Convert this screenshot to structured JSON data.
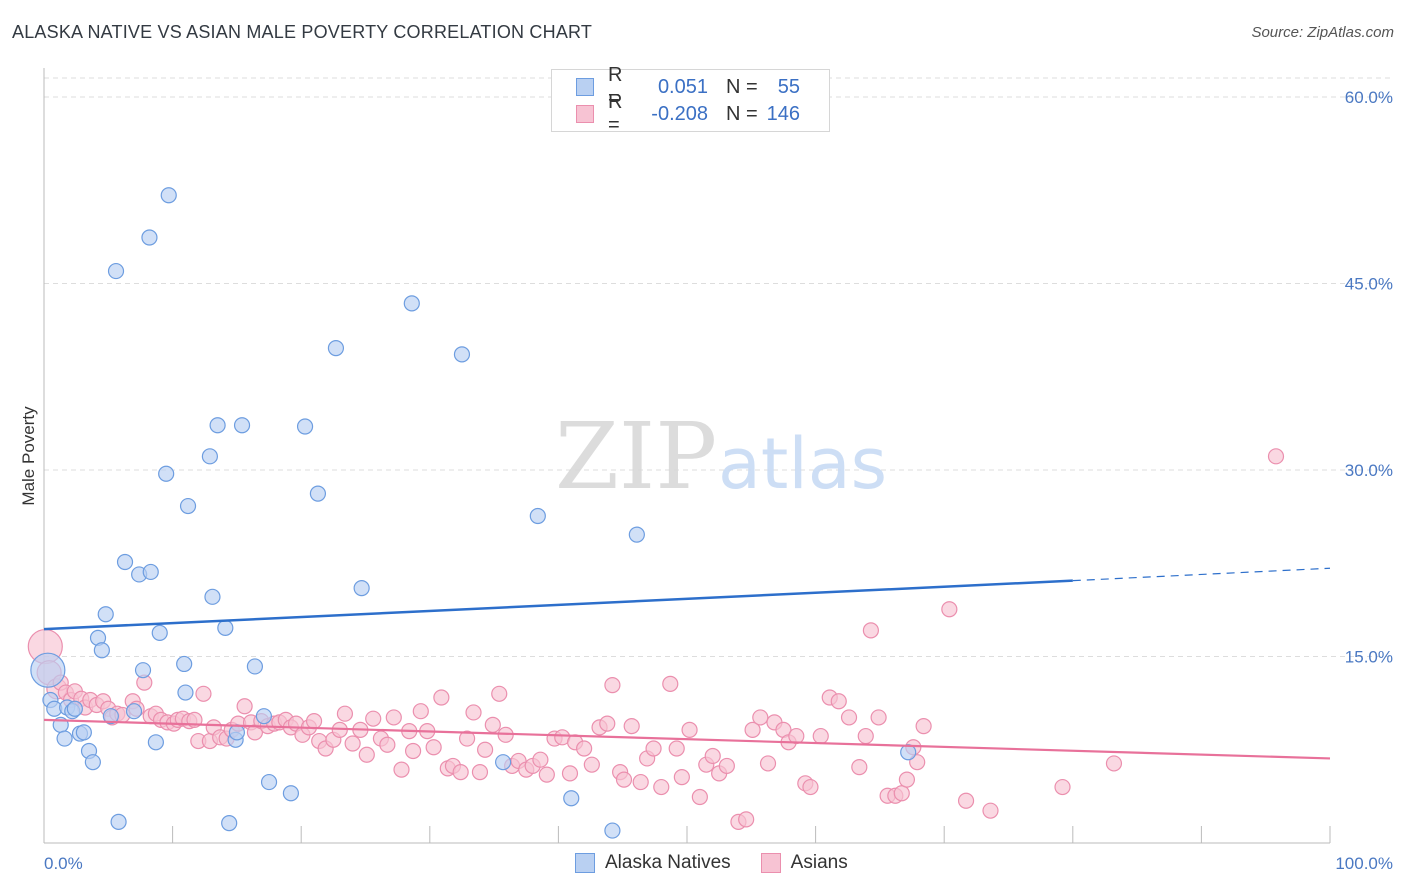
{
  "header": {
    "title": "ALASKA NATIVE VS ASIAN MALE POVERTY CORRELATION CHART",
    "source": "Source: ZipAtlas.com"
  },
  "watermark": {
    "zip": "ZIP",
    "atlas": "atlas"
  },
  "legend": {
    "rows": [
      {
        "r_label": "R =",
        "r_value": "0.051",
        "n_label": "N =",
        "n_value": "55"
      },
      {
        "r_label": "R =",
        "r_value": "-0.208",
        "n_label": "N =",
        "n_value": "146"
      }
    ]
  },
  "bottom_legend": {
    "series1": "Alaska Natives",
    "series2": "Asians"
  },
  "colors": {
    "blue_fill": "#b9d0f2",
    "blue_stroke": "#6d9de0",
    "blue_line": "#2d6fcb",
    "pink_fill": "#f7c3d3",
    "pink_stroke": "#eb8fae",
    "pink_line": "#e8719a",
    "grid": "#dddddd",
    "axis_text": "#4a78c2"
  },
  "chart_data": {
    "type": "scatter",
    "title": "ALASKA NATIVE VS ASIAN MALE POVERTY CORRELATION CHART",
    "xlabel": "",
    "ylabel": "Male Poverty",
    "xlim": [
      0,
      100
    ],
    "ylim": [
      0,
      62
    ],
    "x_tick_labels": [
      "0.0%",
      "100.0%"
    ],
    "y_ticks": [
      15,
      30,
      45,
      60
    ],
    "y_tick_labels": [
      "15.0%",
      "30.0%",
      "45.0%",
      "60.0%"
    ],
    "grid": true,
    "legend_position": "top-center",
    "series": [
      {
        "name": "Alaska Natives",
        "r": 0.051,
        "n": 55,
        "trend": {
          "x": [
            0,
            80
          ],
          "y": [
            17.2,
            21.1
          ],
          "dashed_to": [
            100,
            22.1
          ]
        },
        "points": [
          [
            0.3,
            13.9
          ],
          [
            0.5,
            11.5
          ],
          [
            0.8,
            10.8
          ],
          [
            1.3,
            9.5
          ],
          [
            1.6,
            8.4
          ],
          [
            1.8,
            10.9
          ],
          [
            2.2,
            10.6
          ],
          [
            2.4,
            10.8
          ],
          [
            2.8,
            8.8
          ],
          [
            3.1,
            8.9
          ],
          [
            3.5,
            7.4
          ],
          [
            3.8,
            6.5
          ],
          [
            4.2,
            16.5
          ],
          [
            4.5,
            15.5
          ],
          [
            4.8,
            18.4
          ],
          [
            5.2,
            10.2
          ],
          [
            5.6,
            46.0
          ],
          [
            5.8,
            1.7
          ],
          [
            6.3,
            22.6
          ],
          [
            7.0,
            10.6
          ],
          [
            7.4,
            21.6
          ],
          [
            7.7,
            13.9
          ],
          [
            8.2,
            48.7
          ],
          [
            8.3,
            21.8
          ],
          [
            8.7,
            8.1
          ],
          [
            9.0,
            16.9
          ],
          [
            9.5,
            29.7
          ],
          [
            9.7,
            52.1
          ],
          [
            10.9,
            14.4
          ],
          [
            11.0,
            12.1
          ],
          [
            11.2,
            27.1
          ],
          [
            12.9,
            31.1
          ],
          [
            13.1,
            19.8
          ],
          [
            13.5,
            33.6
          ],
          [
            14.1,
            17.3
          ],
          [
            14.4,
            1.6
          ],
          [
            14.9,
            8.3
          ],
          [
            15.0,
            8.9
          ],
          [
            15.4,
            33.6
          ],
          [
            16.4,
            14.2
          ],
          [
            17.1,
            10.2
          ],
          [
            17.5,
            4.9
          ],
          [
            19.2,
            4.0
          ],
          [
            20.3,
            33.5
          ],
          [
            21.3,
            28.1
          ],
          [
            22.7,
            39.8
          ],
          [
            24.7,
            20.5
          ],
          [
            28.6,
            43.4
          ],
          [
            32.5,
            39.3
          ],
          [
            35.7,
            6.5
          ],
          [
            38.4,
            26.3
          ],
          [
            41.0,
            3.6
          ],
          [
            44.2,
            1.0
          ],
          [
            46.1,
            24.8
          ],
          [
            67.2,
            7.3
          ]
        ],
        "point_sizes": {
          "0": 34,
          "default": 15
        }
      },
      {
        "name": "Asians",
        "r": -0.208,
        "n": 146,
        "trend": {
          "x": [
            0,
            100
          ],
          "y": [
            9.9,
            6.8
          ]
        },
        "points": [
          [
            0.1,
            15.8
          ],
          [
            0.4,
            13.7
          ],
          [
            1.0,
            12.4
          ],
          [
            1.3,
            12.9
          ],
          [
            1.7,
            12.1
          ],
          [
            2.1,
            11.5
          ],
          [
            2.4,
            12.2
          ],
          [
            2.9,
            11.6
          ],
          [
            3.2,
            10.9
          ],
          [
            3.6,
            11.5
          ],
          [
            4.1,
            11.1
          ],
          [
            4.6,
            11.4
          ],
          [
            5.0,
            10.8
          ],
          [
            5.3,
            10.1
          ],
          [
            5.7,
            10.4
          ],
          [
            6.1,
            10.3
          ],
          [
            6.9,
            11.4
          ],
          [
            7.2,
            10.8
          ],
          [
            7.8,
            12.9
          ],
          [
            8.3,
            10.2
          ],
          [
            8.7,
            10.4
          ],
          [
            9.1,
            9.9
          ],
          [
            9.6,
            9.7
          ],
          [
            10.1,
            9.6
          ],
          [
            10.4,
            9.9
          ],
          [
            10.8,
            10.0
          ],
          [
            11.3,
            9.8
          ],
          [
            11.7,
            9.9
          ],
          [
            12.0,
            8.2
          ],
          [
            12.4,
            12.0
          ],
          [
            12.9,
            8.2
          ],
          [
            13.2,
            9.3
          ],
          [
            13.7,
            8.5
          ],
          [
            14.2,
            8.4
          ],
          [
            14.6,
            9.1
          ],
          [
            15.1,
            9.6
          ],
          [
            15.6,
            11.0
          ],
          [
            16.1,
            9.7
          ],
          [
            16.4,
            8.9
          ],
          [
            16.9,
            9.8
          ],
          [
            17.4,
            9.4
          ],
          [
            17.9,
            9.6
          ],
          [
            18.3,
            9.7
          ],
          [
            18.8,
            9.9
          ],
          [
            19.2,
            9.3
          ],
          [
            19.6,
            9.6
          ],
          [
            20.1,
            8.7
          ],
          [
            20.6,
            9.3
          ],
          [
            21.0,
            9.8
          ],
          [
            21.4,
            8.2
          ],
          [
            21.9,
            7.6
          ],
          [
            22.5,
            8.3
          ],
          [
            23.0,
            9.1
          ],
          [
            23.4,
            10.4
          ],
          [
            24.0,
            8.0
          ],
          [
            24.6,
            9.1
          ],
          [
            25.1,
            7.1
          ],
          [
            25.6,
            10.0
          ],
          [
            26.2,
            8.4
          ],
          [
            26.7,
            7.9
          ],
          [
            27.2,
            10.1
          ],
          [
            27.8,
            5.9
          ],
          [
            28.4,
            9.0
          ],
          [
            28.7,
            7.4
          ],
          [
            29.3,
            10.6
          ],
          [
            29.8,
            9.0
          ],
          [
            30.3,
            7.7
          ],
          [
            30.9,
            11.7
          ],
          [
            31.4,
            6.0
          ],
          [
            31.8,
            6.2
          ],
          [
            32.4,
            5.7
          ],
          [
            32.9,
            8.4
          ],
          [
            33.4,
            10.5
          ],
          [
            33.9,
            5.7
          ],
          [
            34.3,
            7.5
          ],
          [
            34.9,
            9.5
          ],
          [
            35.4,
            12.0
          ],
          [
            35.9,
            8.7
          ],
          [
            36.4,
            6.2
          ],
          [
            36.9,
            6.6
          ],
          [
            37.5,
            5.9
          ],
          [
            38.0,
            6.2
          ],
          [
            38.6,
            6.7
          ],
          [
            39.1,
            5.5
          ],
          [
            39.7,
            8.4
          ],
          [
            40.3,
            8.5
          ],
          [
            40.9,
            5.6
          ],
          [
            41.3,
            8.1
          ],
          [
            42.0,
            7.6
          ],
          [
            42.6,
            6.3
          ],
          [
            43.2,
            9.3
          ],
          [
            43.8,
            9.6
          ],
          [
            44.2,
            12.7
          ],
          [
            44.8,
            5.7
          ],
          [
            45.1,
            5.1
          ],
          [
            45.7,
            9.4
          ],
          [
            46.4,
            4.9
          ],
          [
            46.9,
            6.8
          ],
          [
            47.4,
            7.6
          ],
          [
            48.0,
            4.5
          ],
          [
            48.7,
            12.8
          ],
          [
            49.2,
            7.6
          ],
          [
            49.6,
            5.3
          ],
          [
            50.2,
            9.1
          ],
          [
            51.0,
            3.7
          ],
          [
            51.5,
            6.3
          ],
          [
            52.0,
            7.0
          ],
          [
            52.5,
            5.6
          ],
          [
            53.1,
            6.2
          ],
          [
            54.0,
            1.7
          ],
          [
            54.6,
            1.9
          ],
          [
            55.1,
            9.1
          ],
          [
            55.7,
            10.1
          ],
          [
            56.3,
            6.4
          ],
          [
            56.8,
            9.7
          ],
          [
            57.5,
            9.1
          ],
          [
            57.9,
            8.1
          ],
          [
            58.5,
            8.6
          ],
          [
            59.2,
            4.8
          ],
          [
            59.6,
            4.5
          ],
          [
            60.4,
            8.6
          ],
          [
            61.1,
            11.7
          ],
          [
            61.8,
            11.4
          ],
          [
            62.6,
            10.1
          ],
          [
            63.4,
            6.1
          ],
          [
            63.9,
            8.6
          ],
          [
            64.3,
            17.1
          ],
          [
            64.9,
            10.1
          ],
          [
            65.6,
            3.8
          ],
          [
            66.2,
            3.8
          ],
          [
            66.7,
            4.0
          ],
          [
            67.1,
            5.1
          ],
          [
            67.6,
            7.7
          ],
          [
            67.9,
            6.5
          ],
          [
            68.4,
            9.4
          ],
          [
            70.4,
            18.8
          ],
          [
            71.7,
            3.4
          ],
          [
            73.6,
            2.6
          ],
          [
            79.2,
            4.5
          ],
          [
            83.2,
            6.4
          ],
          [
            95.8,
            31.1
          ]
        ],
        "point_sizes": {
          "0": 34,
          "1": 24,
          "2": 20,
          "default": 15
        }
      }
    ]
  }
}
